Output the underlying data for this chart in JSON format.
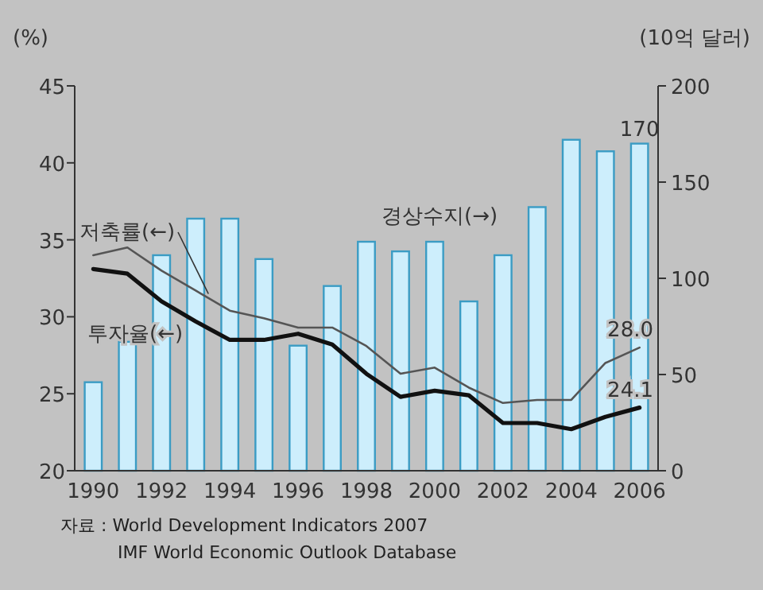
{
  "chart_data": {
    "type": "bar",
    "ylabel": "(%)",
    "y2label": "(10억 달러)",
    "categories": [
      "1990",
      null,
      "1992",
      null,
      "1994",
      null,
      "1996",
      null,
      "1998",
      null,
      "2000",
      null,
      "2002",
      null,
      "2004",
      null,
      "2006"
    ],
    "series": [
      {
        "name": "경상수지(→)",
        "axis": "y2",
        "color": "#cdeefc",
        "values": [
          46,
          67,
          112,
          131,
          131,
          110,
          65,
          96,
          119,
          114,
          119,
          88,
          112,
          137,
          172,
          166,
          170
        ],
        "value_labels": [
          null,
          null,
          null,
          null,
          null,
          null,
          null,
          null,
          null,
          null,
          null,
          null,
          null,
          null,
          null,
          null,
          "170"
        ]
      },
      {
        "name": "저축률(←)",
        "type": "line",
        "color": "#555555",
        "values": [
          34.0,
          34.5,
          33.0,
          31.7,
          30.4,
          29.9,
          29.3,
          29.3,
          28.1,
          26.3,
          26.7,
          25.4,
          24.4,
          24.6,
          24.6,
          27.0,
          28.0
        ],
        "value_labels": [
          null,
          null,
          null,
          null,
          null,
          null,
          null,
          null,
          null,
          null,
          null,
          null,
          null,
          null,
          null,
          null,
          "28.0"
        ]
      },
      {
        "name": "투자율(←)",
        "type": "line",
        "color": "#111111",
        "values": [
          33.1,
          32.8,
          31.0,
          29.7,
          28.5,
          28.5,
          28.9,
          28.2,
          26.3,
          24.8,
          25.2,
          24.9,
          23.1,
          23.1,
          22.7,
          23.5,
          24.1
        ],
        "value_labels": [
          null,
          null,
          null,
          null,
          null,
          null,
          null,
          null,
          null,
          null,
          null,
          null,
          null,
          null,
          null,
          null,
          "24.1"
        ]
      }
    ],
    "ylim": [
      20,
      45
    ],
    "yticks": [
      20,
      25,
      30,
      35,
      40,
      45
    ],
    "y2lim": [
      0,
      200
    ],
    "y2ticks": [
      0,
      50,
      100,
      150,
      200
    ],
    "grid": false,
    "marker": "none",
    "line_style": "solid",
    "annotations": [
      "자료 : World Development Indicators 2007",
      "IMF World Economic Outlook Database"
    ]
  }
}
